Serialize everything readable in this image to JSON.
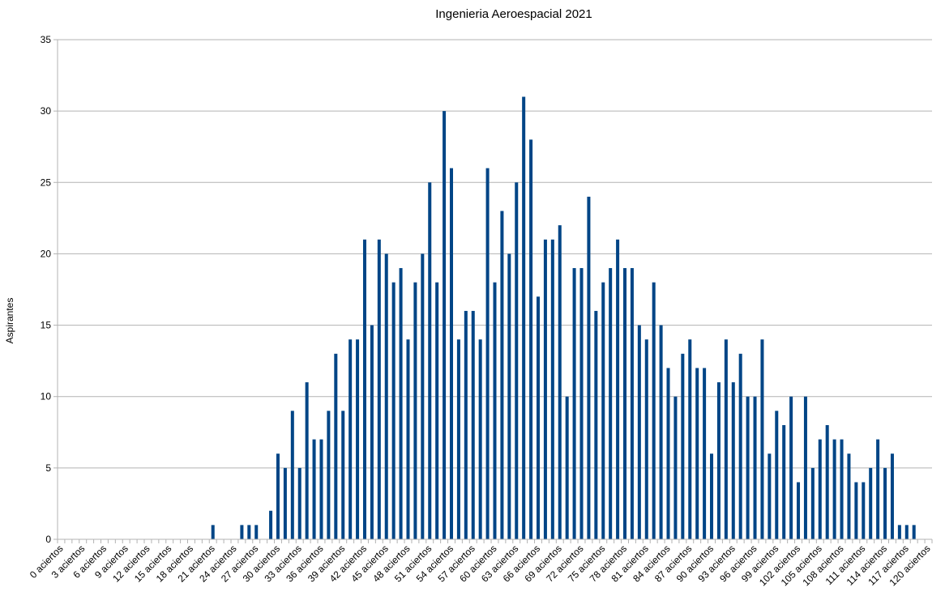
{
  "chart_data": {
    "type": "bar",
    "title": "Ingenieria Aeroespacial 2021",
    "xlabel": "",
    "ylabel": "Aspirantes",
    "ylim": [
      0,
      35
    ],
    "yticks": [
      0,
      5,
      10,
      15,
      20,
      25,
      30,
      35
    ],
    "grid": true,
    "legend": "none",
    "bar_color": "#004586",
    "grid_color": "#b3b3b3",
    "category_suffix": " aciertos",
    "categories": [
      "0 aciertos",
      "1 aciertos",
      "2 aciertos",
      "3 aciertos",
      "4 aciertos",
      "5 aciertos",
      "6 aciertos",
      "7 aciertos",
      "8 aciertos",
      "9 aciertos",
      "10 aciertos",
      "11 aciertos",
      "12 aciertos",
      "13 aciertos",
      "14 aciertos",
      "15 aciertos",
      "16 aciertos",
      "17 aciertos",
      "18 aciertos",
      "19 aciertos",
      "20 aciertos",
      "21 aciertos",
      "22 aciertos",
      "23 aciertos",
      "24 aciertos",
      "25 aciertos",
      "26 aciertos",
      "27 aciertos",
      "28 aciertos",
      "29 aciertos",
      "30 aciertos",
      "31 aciertos",
      "32 aciertos",
      "33 aciertos",
      "34 aciertos",
      "35 aciertos",
      "36 aciertos",
      "37 aciertos",
      "38 aciertos",
      "39 aciertos",
      "40 aciertos",
      "41 aciertos",
      "42 aciertos",
      "43 aciertos",
      "44 aciertos",
      "45 aciertos",
      "46 aciertos",
      "47 aciertos",
      "48 aciertos",
      "49 aciertos",
      "50 aciertos",
      "51 aciertos",
      "52 aciertos",
      "53 aciertos",
      "54 aciertos",
      "55 aciertos",
      "56 aciertos",
      "57 aciertos",
      "58 aciertos",
      "59 aciertos",
      "60 aciertos",
      "61 aciertos",
      "62 aciertos",
      "63 aciertos",
      "64 aciertos",
      "65 aciertos",
      "66 aciertos",
      "67 aciertos",
      "68 aciertos",
      "69 aciertos",
      "70 aciertos",
      "71 aciertos",
      "72 aciertos",
      "73 aciertos",
      "74 aciertos",
      "75 aciertos",
      "76 aciertos",
      "77 aciertos",
      "78 aciertos",
      "79 aciertos",
      "80 aciertos",
      "81 aciertos",
      "82 aciertos",
      "83 aciertos",
      "84 aciertos",
      "85 aciertos",
      "86 aciertos",
      "87 aciertos",
      "88 aciertos",
      "89 aciertos",
      "90 aciertos",
      "91 aciertos",
      "92 aciertos",
      "93 aciertos",
      "94 aciertos",
      "95 aciertos",
      "96 aciertos",
      "97 aciertos",
      "98 aciertos",
      "99 aciertos",
      "100 aciertos",
      "101 aciertos",
      "102 aciertos",
      "103 aciertos",
      "104 aciertos",
      "105 aciertos",
      "106 aciertos",
      "107 aciertos",
      "108 aciertos",
      "109 aciertos",
      "110 aciertos",
      "111 aciertos",
      "112 aciertos",
      "113 aciertos",
      "114 aciertos",
      "115 aciertos",
      "116 aciertos",
      "117 aciertos",
      "118 aciertos",
      "119 aciertos",
      "120 aciertos"
    ],
    "tick_label_every": 3,
    "values": [
      0,
      0,
      0,
      0,
      0,
      0,
      0,
      0,
      0,
      0,
      0,
      0,
      0,
      0,
      0,
      0,
      0,
      0,
      0,
      0,
      0,
      1,
      0,
      0,
      0,
      1,
      1,
      1,
      0,
      2,
      6,
      5,
      9,
      5,
      11,
      7,
      7,
      9,
      13,
      9,
      14,
      14,
      21,
      15,
      21,
      20,
      18,
      19,
      14,
      18,
      20,
      25,
      18,
      30,
      26,
      14,
      16,
      16,
      14,
      26,
      18,
      23,
      20,
      25,
      31,
      28,
      17,
      21,
      21,
      22,
      10,
      19,
      19,
      24,
      16,
      18,
      19,
      21,
      19,
      19,
      15,
      14,
      18,
      15,
      12,
      10,
      13,
      14,
      12,
      12,
      6,
      11,
      14,
      11,
      13,
      10,
      10,
      14,
      6,
      9,
      8,
      10,
      4,
      10,
      5,
      7,
      8,
      7,
      7,
      6,
      4,
      4,
      5,
      7,
      5,
      6,
      1,
      1,
      1,
      0,
      0
    ]
  }
}
